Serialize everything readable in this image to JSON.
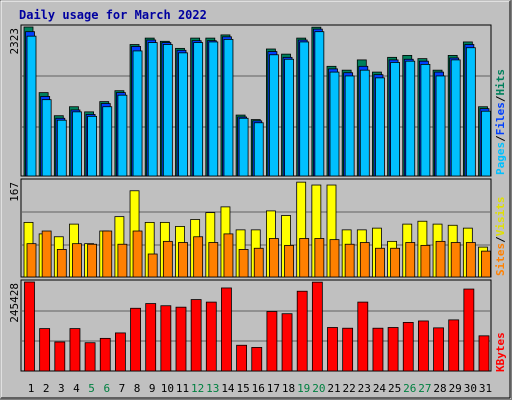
{
  "chart_data": {
    "title": "Daily usage for March 2022",
    "days": [
      "1",
      "2",
      "3",
      "4",
      "5",
      "6",
      "7",
      "8",
      "9",
      "10",
      "11",
      "12",
      "13",
      "14",
      "15",
      "16",
      "17",
      "18",
      "19",
      "20",
      "21",
      "22",
      "23",
      "24",
      "25",
      "26",
      "27",
      "28",
      "29",
      "30",
      "31"
    ],
    "weekend_days": [
      "5",
      "6",
      "12",
      "13",
      "19",
      "20",
      "26",
      "27"
    ],
    "colors": {
      "title": "#0000a0",
      "hits": "#00805c",
      "files": "#0040ff",
      "pages": "#00c0ff",
      "visits": "#ffff00",
      "sites": "#ff8000",
      "kbytes": "#ff0000",
      "weekday_label": "#000000",
      "weekend_label": "#008040",
      "background": "#c0c0c0"
    },
    "panels": [
      {
        "type": "bar",
        "max_label": "2323",
        "ymax": 2323,
        "legend": [
          "Pages",
          "Files",
          "Hits"
        ],
        "series": [
          {
            "name": "Hits",
            "values": [
              2323,
              1300,
              940,
              1080,
              1000,
              1160,
              1330,
              2050,
              2150,
              2100,
              1990,
              2150,
              2150,
              2200,
              950,
              880,
              1980,
              1900,
              2150,
              2320,
              1710,
              1650,
              1810,
              1620,
              1850,
              1880,
              1830,
              1650,
              1880,
              2090,
              1080
            ]
          },
          {
            "name": "Files",
            "values": [
              2250,
              1240,
              900,
              1030,
              960,
              1130,
              1300,
              2020,
              2120,
              2080,
              1960,
              2110,
              2110,
              2170,
              920,
              860,
              1940,
              1850,
              2120,
              2290,
              1670,
              1610,
              1710,
              1580,
              1810,
              1820,
              1790,
              1620,
              1840,
              2050,
              1050
            ]
          },
          {
            "name": "Pages",
            "values": [
              2180,
              1190,
              870,
              1000,
              930,
              1080,
              1260,
              1950,
              2080,
              2050,
              1920,
              2080,
              2090,
              2130,
              900,
              830,
              1890,
              1820,
              2090,
              2250,
              1620,
              1560,
              1650,
              1530,
              1770,
              1790,
              1740,
              1560,
              1810,
              2000,
              1010
            ]
          }
        ]
      },
      {
        "type": "bar",
        "max_label": "167",
        "ymax": 167,
        "legend": [
          "Sites",
          "/",
          "Visits"
        ],
        "series": [
          {
            "name": "Visits",
            "values": [
              95,
              75,
              70,
              92,
              58,
              80,
              105,
              150,
              95,
              95,
              88,
              100,
              112,
              122,
              82,
              82,
              115,
              107,
              165,
              160,
              160,
              82,
              82,
              85,
              62,
              92,
              97,
              92,
              90,
              85,
              52
            ]
          },
          {
            "name": "Sites",
            "values": [
              58,
              80,
              48,
              58,
              57,
              80,
              57,
              80,
              40,
              62,
              60,
              70,
              60,
              75,
              48,
              50,
              67,
              55,
              67,
              67,
              65,
              57,
              60,
              50,
              50,
              60,
              55,
              62,
              60,
              60,
              45
            ]
          }
        ]
      },
      {
        "type": "bar",
        "max_label": "245428",
        "ymax": 245428,
        "legend": [
          "KBytes"
        ],
        "series": [
          {
            "name": "KBytes",
            "values": [
              245428,
              117000,
              80000,
              117000,
              78000,
              90000,
              105000,
              173000,
              186000,
              180000,
              176000,
              197000,
              190000,
              229000,
              71000,
              65000,
              164000,
              158000,
              220000,
              245000,
              120000,
              118000,
              190000,
              118000,
              120000,
              134000,
              138000,
              119000,
              141000,
              226000,
              97000
            ]
          }
        ]
      }
    ]
  }
}
